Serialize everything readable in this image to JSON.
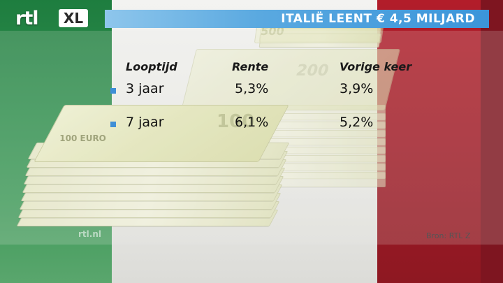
{
  "header": {
    "logo_text": "rtl",
    "logo_badge": "XL",
    "title": "ITALIË LEENT € 4,5 MILJARD"
  },
  "table": {
    "columns": [
      "Looptijd",
      "Rente",
      "Vorige keer"
    ],
    "rows": [
      {
        "looptijd": "3 jaar",
        "rente": "5,3%",
        "vorige": "3,9%"
      },
      {
        "looptijd": "7 jaar",
        "rente": "6,1%",
        "vorige": "5,2%"
      }
    ]
  },
  "background": {
    "flag_colors": [
      "#1e7d3f",
      "#f3f3f1",
      "#b21d2a"
    ],
    "notes": [
      {
        "denomination": "100",
        "label": "100 EURO"
      },
      {
        "denomination": "200"
      },
      {
        "denomination": "500"
      }
    ]
  },
  "watermark": "rtl.nl",
  "source": "Bron: RTL Z",
  "accent_color": "#3f8fd6"
}
